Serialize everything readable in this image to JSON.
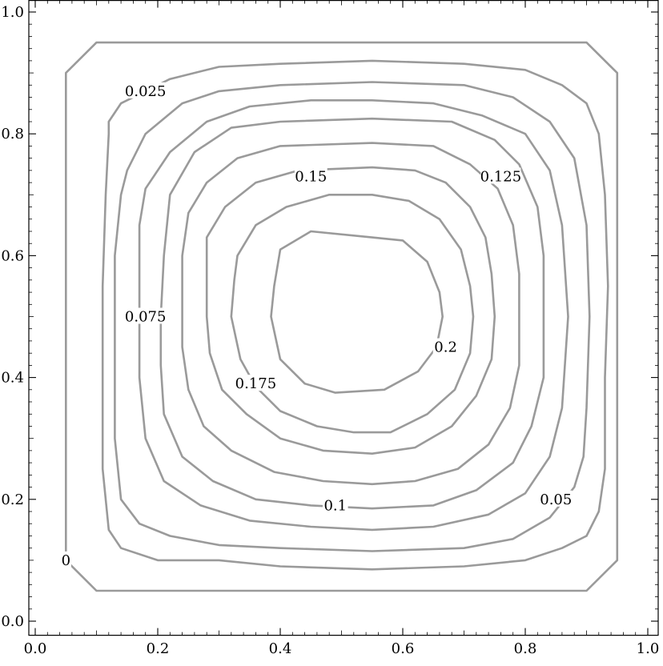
{
  "chart_data": {
    "type": "contour",
    "title": "",
    "xlabel": "",
    "ylabel": "",
    "xlim": [
      0,
      1
    ],
    "ylim": [
      0,
      1
    ],
    "grid": false,
    "x_ticks": [
      "0.0",
      "0.2",
      "0.4",
      "0.6",
      "0.8",
      "1.0"
    ],
    "y_ticks": [
      "0.0",
      "0.2",
      "0.4",
      "0.6",
      "0.8",
      "1.0"
    ],
    "line_color": "#9a9a9a",
    "contours": [
      {
        "level": "0",
        "label_at": [
          0.05,
          0.1
        ],
        "points": [
          [
            0.1,
            0.95
          ],
          [
            0.9,
            0.95
          ],
          [
            0.95,
            0.9
          ],
          [
            0.95,
            0.1
          ],
          [
            0.9,
            0.05
          ],
          [
            0.1,
            0.05
          ],
          [
            0.05,
            0.1
          ],
          [
            0.05,
            0.9
          ]
        ]
      },
      {
        "level": "0.025",
        "label_at": [
          0.18,
          0.87
        ],
        "points": [
          [
            0.12,
            0.82
          ],
          [
            0.14,
            0.85
          ],
          [
            0.18,
            0.87
          ],
          [
            0.22,
            0.89
          ],
          [
            0.3,
            0.91
          ],
          [
            0.4,
            0.915
          ],
          [
            0.55,
            0.92
          ],
          [
            0.7,
            0.915
          ],
          [
            0.8,
            0.905
          ],
          [
            0.86,
            0.88
          ],
          [
            0.9,
            0.85
          ],
          [
            0.92,
            0.8
          ],
          [
            0.93,
            0.7
          ],
          [
            0.935,
            0.55
          ],
          [
            0.93,
            0.4
          ],
          [
            0.93,
            0.25
          ],
          [
            0.92,
            0.18
          ],
          [
            0.9,
            0.14
          ],
          [
            0.86,
            0.12
          ],
          [
            0.8,
            0.1
          ],
          [
            0.7,
            0.09
          ],
          [
            0.55,
            0.085
          ],
          [
            0.4,
            0.09
          ],
          [
            0.3,
            0.1
          ],
          [
            0.2,
            0.1
          ],
          [
            0.14,
            0.12
          ],
          [
            0.12,
            0.15
          ],
          [
            0.11,
            0.25
          ],
          [
            0.11,
            0.4
          ],
          [
            0.11,
            0.55
          ],
          [
            0.115,
            0.7
          ],
          [
            0.12,
            0.8
          ]
        ]
      },
      {
        "level": "0.05",
        "label_at": [
          0.85,
          0.2
        ],
        "points": [
          [
            0.15,
            0.74
          ],
          [
            0.18,
            0.8
          ],
          [
            0.24,
            0.85
          ],
          [
            0.3,
            0.87
          ],
          [
            0.4,
            0.88
          ],
          [
            0.55,
            0.885
          ],
          [
            0.7,
            0.88
          ],
          [
            0.78,
            0.86
          ],
          [
            0.84,
            0.82
          ],
          [
            0.88,
            0.76
          ],
          [
            0.9,
            0.65
          ],
          [
            0.905,
            0.5
          ],
          [
            0.9,
            0.35
          ],
          [
            0.895,
            0.27
          ],
          [
            0.88,
            0.22
          ],
          [
            0.84,
            0.17
          ],
          [
            0.78,
            0.135
          ],
          [
            0.7,
            0.12
          ],
          [
            0.55,
            0.115
          ],
          [
            0.4,
            0.12
          ],
          [
            0.3,
            0.125
          ],
          [
            0.22,
            0.14
          ],
          [
            0.17,
            0.16
          ],
          [
            0.14,
            0.2
          ],
          [
            0.13,
            0.3
          ],
          [
            0.13,
            0.45
          ],
          [
            0.13,
            0.6
          ],
          [
            0.14,
            0.7
          ]
        ]
      },
      {
        "level": "0.075",
        "label_at": [
          0.18,
          0.5
        ],
        "points": [
          [
            0.18,
            0.71
          ],
          [
            0.22,
            0.77
          ],
          [
            0.28,
            0.82
          ],
          [
            0.35,
            0.845
          ],
          [
            0.45,
            0.855
          ],
          [
            0.55,
            0.855
          ],
          [
            0.65,
            0.85
          ],
          [
            0.73,
            0.83
          ],
          [
            0.8,
            0.8
          ],
          [
            0.84,
            0.74
          ],
          [
            0.86,
            0.65
          ],
          [
            0.87,
            0.5
          ],
          [
            0.86,
            0.35
          ],
          [
            0.84,
            0.27
          ],
          [
            0.8,
            0.21
          ],
          [
            0.74,
            0.175
          ],
          [
            0.65,
            0.155
          ],
          [
            0.55,
            0.15
          ],
          [
            0.45,
            0.155
          ],
          [
            0.35,
            0.165
          ],
          [
            0.27,
            0.19
          ],
          [
            0.21,
            0.23
          ],
          [
            0.18,
            0.3
          ],
          [
            0.17,
            0.4
          ],
          [
            0.17,
            0.55
          ],
          [
            0.17,
            0.65
          ]
        ]
      },
      {
        "level": "0.1",
        "label_at": [
          0.49,
          0.19
        ],
        "points": [
          [
            0.22,
            0.7
          ],
          [
            0.26,
            0.77
          ],
          [
            0.32,
            0.81
          ],
          [
            0.4,
            0.82
          ],
          [
            0.55,
            0.825
          ],
          [
            0.68,
            0.82
          ],
          [
            0.75,
            0.79
          ],
          [
            0.79,
            0.75
          ],
          [
            0.82,
            0.68
          ],
          [
            0.83,
            0.6
          ],
          [
            0.83,
            0.5
          ],
          [
            0.83,
            0.4
          ],
          [
            0.81,
            0.32
          ],
          [
            0.78,
            0.26
          ],
          [
            0.72,
            0.215
          ],
          [
            0.65,
            0.19
          ],
          [
            0.55,
            0.185
          ],
          [
            0.45,
            0.19
          ],
          [
            0.36,
            0.2
          ],
          [
            0.29,
            0.23
          ],
          [
            0.24,
            0.27
          ],
          [
            0.21,
            0.34
          ],
          [
            0.205,
            0.42
          ],
          [
            0.205,
            0.5
          ],
          [
            0.21,
            0.6
          ]
        ]
      },
      {
        "level": "0.125",
        "label_at": [
          0.76,
          0.73
        ],
        "points": [
          [
            0.25,
            0.67
          ],
          [
            0.28,
            0.72
          ],
          [
            0.33,
            0.76
          ],
          [
            0.4,
            0.78
          ],
          [
            0.55,
            0.785
          ],
          [
            0.65,
            0.78
          ],
          [
            0.71,
            0.75
          ],
          [
            0.755,
            0.71
          ],
          [
            0.78,
            0.65
          ],
          [
            0.79,
            0.57
          ],
          [
            0.79,
            0.5
          ],
          [
            0.79,
            0.42
          ],
          [
            0.775,
            0.35
          ],
          [
            0.74,
            0.29
          ],
          [
            0.69,
            0.25
          ],
          [
            0.62,
            0.23
          ],
          [
            0.55,
            0.225
          ],
          [
            0.47,
            0.23
          ],
          [
            0.39,
            0.245
          ],
          [
            0.32,
            0.28
          ],
          [
            0.275,
            0.32
          ],
          [
            0.25,
            0.38
          ],
          [
            0.24,
            0.45
          ],
          [
            0.24,
            0.52
          ],
          [
            0.24,
            0.6
          ]
        ]
      },
      {
        "level": "0.15",
        "label_at": [
          0.45,
          0.73
        ],
        "points": [
          [
            0.28,
            0.63
          ],
          [
            0.31,
            0.68
          ],
          [
            0.36,
            0.72
          ],
          [
            0.43,
            0.74
          ],
          [
            0.55,
            0.745
          ],
          [
            0.62,
            0.74
          ],
          [
            0.67,
            0.72
          ],
          [
            0.71,
            0.68
          ],
          [
            0.735,
            0.63
          ],
          [
            0.745,
            0.57
          ],
          [
            0.75,
            0.5
          ],
          [
            0.745,
            0.43
          ],
          [
            0.72,
            0.37
          ],
          [
            0.68,
            0.32
          ],
          [
            0.62,
            0.285
          ],
          [
            0.55,
            0.275
          ],
          [
            0.47,
            0.28
          ],
          [
            0.4,
            0.3
          ],
          [
            0.345,
            0.34
          ],
          [
            0.305,
            0.38
          ],
          [
            0.285,
            0.44
          ],
          [
            0.28,
            0.5
          ],
          [
            0.28,
            0.57
          ]
        ]
      },
      {
        "level": "0.175",
        "label_at": [
          0.36,
          0.39
        ],
        "points": [
          [
            0.33,
            0.6
          ],
          [
            0.36,
            0.65
          ],
          [
            0.41,
            0.68
          ],
          [
            0.48,
            0.7
          ],
          [
            0.55,
            0.7
          ],
          [
            0.61,
            0.69
          ],
          [
            0.66,
            0.66
          ],
          [
            0.695,
            0.61
          ],
          [
            0.71,
            0.55
          ],
          [
            0.715,
            0.5
          ],
          [
            0.71,
            0.44
          ],
          [
            0.685,
            0.38
          ],
          [
            0.64,
            0.34
          ],
          [
            0.58,
            0.31
          ],
          [
            0.52,
            0.31
          ],
          [
            0.46,
            0.32
          ],
          [
            0.4,
            0.345
          ],
          [
            0.36,
            0.385
          ],
          [
            0.335,
            0.43
          ],
          [
            0.32,
            0.5
          ],
          [
            0.325,
            0.56
          ]
        ]
      },
      {
        "level": "0.2",
        "label_at": [
          0.67,
          0.45
        ],
        "points": [
          [
            0.4,
            0.61
          ],
          [
            0.45,
            0.64
          ],
          [
            0.55,
            0.63
          ],
          [
            0.6,
            0.625
          ],
          [
            0.64,
            0.59
          ],
          [
            0.66,
            0.54
          ],
          [
            0.665,
            0.5
          ],
          [
            0.655,
            0.45
          ],
          [
            0.625,
            0.41
          ],
          [
            0.57,
            0.38
          ],
          [
            0.49,
            0.375
          ],
          [
            0.44,
            0.39
          ],
          [
            0.4,
            0.43
          ],
          [
            0.385,
            0.5
          ],
          [
            0.39,
            0.55
          ]
        ]
      }
    ]
  }
}
